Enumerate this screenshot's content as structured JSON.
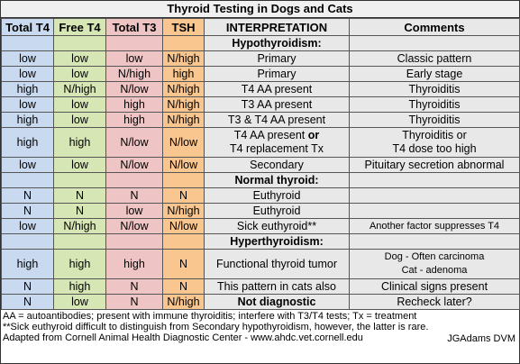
{
  "title": "Thyroid Testing in Dogs and Cats",
  "headers": [
    "Total T4",
    "Free T4",
    "Total T3",
    "TSH",
    "INTERPRETATION",
    "Comments"
  ],
  "rows": [
    {
      "type": "section",
      "label": "Hypothyroidism:"
    },
    {
      "type": "data",
      "cells": [
        "low",
        "low",
        "low",
        "N/high"
      ],
      "interp": "Primary",
      "comment": "Classic pattern"
    },
    {
      "type": "data",
      "cells": [
        "low",
        "low",
        "N/high",
        "high"
      ],
      "interp": "Primary",
      "comment": "Early stage"
    },
    {
      "type": "data",
      "cells": [
        "high",
        "N/high",
        "N/low",
        "N/high"
      ],
      "interp": "T4 AA present",
      "comment": "Thyroiditis"
    },
    {
      "type": "data",
      "cells": [
        "low",
        "low",
        "high",
        "N/high"
      ],
      "interp": "T3 AA  present",
      "comment": "Thyroiditis"
    },
    {
      "type": "data",
      "cells": [
        "high",
        "low",
        "high",
        "N/high"
      ],
      "interp": "T3 & T4 AA  present",
      "comment": "Thyroiditis"
    },
    {
      "type": "data2",
      "cells": [
        "high",
        "high",
        "N/low",
        "N/low"
      ],
      "interp1": "T4 AA present",
      "interp_bold": " or",
      "interp2": "T4 replacement Tx",
      "comment1": "Thyroiditis or",
      "comment2": "T4 dose too high"
    },
    {
      "type": "data",
      "cells": [
        "low",
        "low",
        "N/low",
        "N/low"
      ],
      "interp": "Secondary",
      "comment": "Pituitary secretion abnormal"
    },
    {
      "type": "section",
      "label": "Normal thyroid:"
    },
    {
      "type": "data",
      "cells": [
        "N",
        "N",
        "N",
        "N"
      ],
      "interp": "Euthyroid",
      "comment": ""
    },
    {
      "type": "data",
      "cells": [
        "N",
        "N",
        "low",
        "N/high"
      ],
      "interp": "Euthyroid",
      "comment": ""
    },
    {
      "type": "data",
      "cells": [
        "low",
        "N/high",
        "N/low",
        "N/low"
      ],
      "interp": "Sick euthyroid**",
      "comment": "Another factor suppresses T4",
      "comment_small": true
    },
    {
      "type": "section",
      "label": "Hyperthyroidism:"
    },
    {
      "type": "data2",
      "cells": [
        "high",
        "high",
        "high",
        "N"
      ],
      "interp": "Functional thyroid tumor",
      "comment1": "Dog - Often carcinoma",
      "comment2": "Cat - adenoma",
      "comment_small": true
    },
    {
      "type": "data",
      "cells": [
        "N",
        "high",
        "N",
        "N"
      ],
      "interp": "This pattern in cats also",
      "comment": "Clinical signs present"
    },
    {
      "type": "data",
      "cells": [
        "N",
        "low",
        "N",
        "N/high"
      ],
      "interp": "Not diagnostic",
      "interp_bold": true,
      "comment": "Recheck later?"
    }
  ],
  "footer": {
    "line1": "AA = autoantibodies; present with immune thyroiditis; interfere with T3/T4 tests; Tx = treatment",
    "line2": "**Sick euthyroid difficult to distinguish from Secondary hypothyroidism, however, the latter is rare.",
    "line3": "Adapted from Cornell Animal Health Diagnostic Center - www.ahdc.vet.cornell.edu",
    "signature": "JGAdams DVM"
  }
}
